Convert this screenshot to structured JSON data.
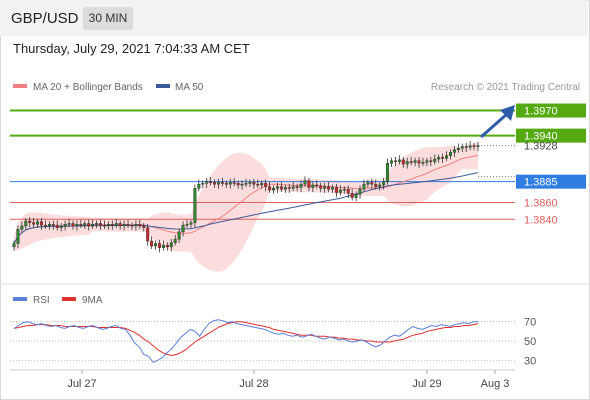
{
  "header": {
    "symbol": "GBP/USD",
    "timeframe_button": "30 MIN"
  },
  "timestamp": "Thursday, July 29, 2021 7:04:33 AM CET",
  "legend": {
    "bollinger": "MA 20 + Bollinger Bands",
    "ma50": "MA 50",
    "credit": "Research © 2021 Trading Central",
    "rsi": "RSI",
    "ma9": "9MA"
  },
  "colors": {
    "bollinger": "#f08080",
    "ma50": "#3b5998",
    "green_level": "#55aa11",
    "blue_level": "#2f7de1",
    "red_level": "#e06060",
    "rsi": "#5b7fd6",
    "ma9": "#e03030",
    "candle_up": "#2e8b2e",
    "candle_down": "#cc2a2a"
  },
  "chart_data": {
    "type": "candlestick",
    "x_labels": [
      "Jul 27",
      "Jul 28",
      "Jul 29",
      "Aug 3"
    ],
    "price_levels": [
      {
        "value": 1.397,
        "label": "1.3970",
        "style": "resistance-2"
      },
      {
        "value": 1.394,
        "label": "1.3940",
        "style": "resistance-1"
      },
      {
        "value": 1.3928,
        "label": "1.3928",
        "style": "last"
      },
      {
        "value": 1.3885,
        "label": "1.3885",
        "style": "pivot"
      },
      {
        "value": 1.386,
        "label": "1.3860",
        "style": "support-1"
      },
      {
        "value": 1.384,
        "label": "1.3840",
        "style": "support-2"
      }
    ],
    "ylim": [
      1.3765,
      1.3985
    ],
    "closes": [
      1.3811,
      1.3828,
      1.3832,
      1.3838,
      1.3836,
      1.3834,
      1.3837,
      1.3833,
      1.3832,
      1.3834,
      1.3833,
      1.383,
      1.3832,
      1.3834,
      1.3835,
      1.3832,
      1.3834,
      1.3833,
      1.3835,
      1.3832,
      1.3834,
      1.3835,
      1.3833,
      1.3832,
      1.3834,
      1.3833,
      1.3835,
      1.3832,
      1.3834,
      1.3833,
      1.3832,
      1.3834,
      1.3832,
      1.383,
      1.3814,
      1.3808,
      1.3811,
      1.3806,
      1.3809,
      1.3807,
      1.3812,
      1.3816,
      1.3825,
      1.3833,
      1.3834,
      1.3836,
      1.3877,
      1.3882,
      1.3883,
      1.3885,
      1.3884,
      1.3882,
      1.3884,
      1.3883,
      1.3882,
      1.3884,
      1.3883,
      1.3881,
      1.3882,
      1.3883,
      1.3884,
      1.3882,
      1.3881,
      1.3883,
      1.3879,
      1.3875,
      1.3877,
      1.3879,
      1.3876,
      1.3878,
      1.3877,
      1.3879,
      1.3878,
      1.3882,
      1.3886,
      1.3878,
      1.3881,
      1.388,
      1.3877,
      1.3879,
      1.3876,
      1.3878,
      1.3872,
      1.3875,
      1.3876,
      1.3871,
      1.3866,
      1.387,
      1.3876,
      1.3882,
      1.3884,
      1.3882,
      1.3879,
      1.3881,
      1.3885,
      1.3907,
      1.391,
      1.3909,
      1.3911,
      1.3906,
      1.3909,
      1.3908,
      1.391,
      1.3907,
      1.3908,
      1.391,
      1.3909,
      1.3912,
      1.3914,
      1.3913,
      1.3916,
      1.392,
      1.3923,
      1.3925,
      1.3927,
      1.3926,
      1.3928,
      1.3927,
      1.3928
    ],
    "rsi": {
      "ylim": [
        20,
        80
      ],
      "ticks": [
        30,
        50,
        70
      ],
      "tick_labels": [
        "70",
        "50",
        "30"
      ],
      "rsi_values": [
        63,
        66,
        69,
        70,
        68,
        67,
        68,
        66,
        65,
        66,
        64,
        63,
        65,
        66,
        64,
        63,
        65,
        66,
        64,
        62,
        63,
        65,
        66,
        63,
        62,
        56,
        48,
        44,
        36,
        34,
        28,
        30,
        33,
        38,
        42,
        48,
        54,
        58,
        62,
        60,
        55,
        62,
        68,
        71,
        72,
        71,
        69,
        70,
        68,
        67,
        66,
        65,
        64,
        63,
        62,
        60,
        58,
        57,
        58,
        56,
        55,
        56,
        54,
        55,
        57,
        55,
        53,
        52,
        54,
        53,
        51,
        52,
        50,
        49,
        50,
        51,
        49,
        46,
        44,
        46,
        50,
        54,
        56,
        55,
        58,
        62,
        65,
        63,
        62,
        64,
        66,
        65,
        67,
        66,
        65,
        67,
        68,
        69,
        68,
        70,
        70
      ],
      "ma9_values": [
        63,
        64,
        65,
        66,
        66,
        67,
        67,
        67,
        66,
        66,
        66,
        65,
        65,
        65,
        65,
        65,
        65,
        65,
        64,
        64,
        64,
        64,
        64,
        64,
        63,
        61,
        59,
        56,
        52,
        49,
        45,
        41,
        38,
        36,
        35,
        36,
        38,
        41,
        45,
        49,
        52,
        55,
        58,
        61,
        64,
        66,
        68,
        69,
        70,
        70,
        69,
        68,
        67,
        66,
        65,
        64,
        62,
        61,
        60,
        59,
        58,
        57,
        56,
        56,
        56,
        55,
        55,
        55,
        54,
        54,
        53,
        53,
        52,
        52,
        51,
        51,
        50,
        50,
        49,
        49,
        49,
        49,
        50,
        51,
        52,
        54,
        56,
        57,
        58,
        60,
        61,
        62,
        63,
        64,
        64,
        65,
        65,
        66,
        66,
        67,
        68
      ]
    }
  }
}
